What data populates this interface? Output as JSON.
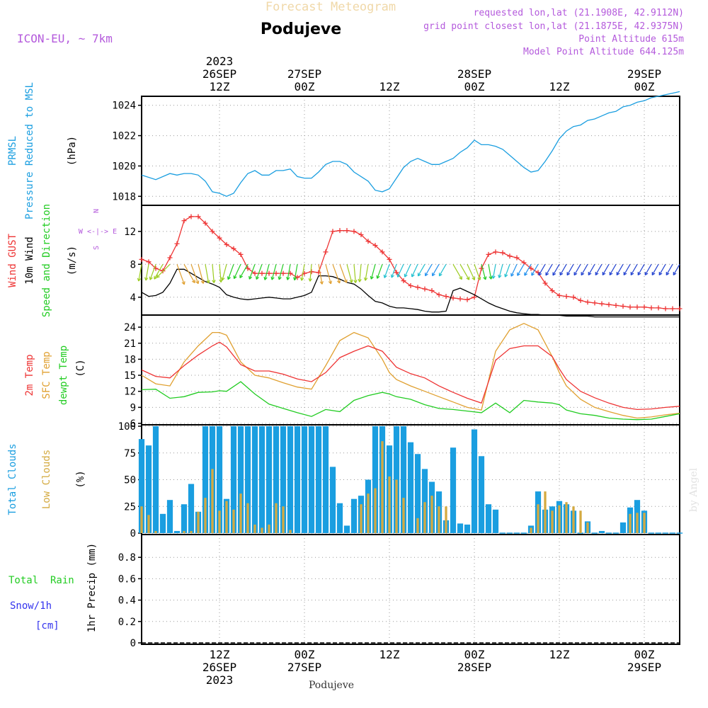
{
  "header": {
    "title_faint": "Forecast Meteogram",
    "location": "Podujeve",
    "model": "ICON-EU, ~ 7km",
    "requested": "requested lon,lat (21.1908E, 42.9112N)",
    "gridpoint": "grid point closest lon,lat (21.1875E, 42.9375N)",
    "point_altitude": "Point Altitude 615m",
    "model_altitude": "Model Point Altitude 644.125m",
    "footer_location": "Podujeve",
    "watermark": "by Angel"
  },
  "colors": {
    "pressure": "#1a9ee0",
    "gust": "#ee3333",
    "wind": "#000000",
    "temp2m": "#ee3333",
    "sfctemp": "#e0a030",
    "dewpt": "#22cc22",
    "total_clouds": "#1a9ee0",
    "low_clouds": "#d4aa40",
    "rain": "#22cc22",
    "snow": "#3333ee",
    "title_purple": "#b45adc",
    "grid": "#999999"
  },
  "axis_labels": {
    "pressure": [
      "PRMSL",
      "Pressure Reduced to MSL",
      "(hPa)"
    ],
    "wind": [
      "Wind GUST",
      "10m Wind",
      "Speed and Direction",
      "(m/s)"
    ],
    "compass": [
      "N",
      "W <-|-> E",
      "S"
    ],
    "temp": [
      "2m Temp",
      "SFC Temp",
      "dewpt Temp",
      "(C)"
    ],
    "clouds": [
      "Total Clouds",
      "Low Clouds",
      "(%)"
    ],
    "precip": [
      "1hr Precip (mm)"
    ],
    "precip_legend": [
      "Total  Rain",
      "Snow/1h",
      "[cm]"
    ]
  },
  "time_axis": {
    "top": [
      {
        "hour": 12,
        "lines": [
          "2023",
          "26SEP",
          "12Z"
        ]
      },
      {
        "hour": 24,
        "lines": [
          "27SEP",
          "00Z"
        ]
      },
      {
        "hour": 36,
        "lines": [
          "12Z"
        ]
      },
      {
        "hour": 48,
        "lines": [
          "28SEP",
          "00Z"
        ]
      },
      {
        "hour": 60,
        "lines": [
          "12Z"
        ]
      },
      {
        "hour": 72,
        "lines": [
          "29SEP",
          "00Z"
        ]
      }
    ],
    "bottom": [
      {
        "hour": 12,
        "lines": [
          "12Z",
          "26SEP",
          "2023"
        ]
      },
      {
        "hour": 24,
        "lines": [
          "00Z",
          "27SEP"
        ]
      },
      {
        "hour": 36,
        "lines": [
          "12Z"
        ]
      },
      {
        "hour": 48,
        "lines": [
          "00Z",
          "28SEP"
        ]
      },
      {
        "hour": 60,
        "lines": [
          "12Z"
        ]
      },
      {
        "hour": 72,
        "lines": [
          "00Z",
          "29SEP"
        ]
      }
    ],
    "first_hour": 1,
    "last_hour": 77
  },
  "chart_data": [
    {
      "type": "line",
      "name": "pressure",
      "ylim": [
        1017.5,
        1024.5
      ],
      "yticks": [
        1018,
        1020,
        1022,
        1024
      ],
      "x": [
        1,
        3,
        5,
        6,
        7,
        8,
        9,
        10,
        11,
        12,
        13,
        14,
        15,
        16,
        17,
        18,
        19,
        20,
        21,
        22,
        23,
        24,
        25,
        26,
        27,
        28,
        29,
        30,
        31,
        32,
        33,
        34,
        35,
        36,
        37,
        38,
        39,
        40,
        41,
        42,
        43,
        44,
        45,
        46,
        47,
        48,
        49,
        50,
        51,
        52,
        53,
        54,
        55,
        56,
        57,
        58,
        59,
        60,
        61,
        62,
        63,
        64,
        65,
        66,
        67,
        68,
        69,
        70,
        71,
        72,
        73,
        74,
        75,
        76,
        77
      ],
      "values": [
        1019.4,
        1019.1,
        1019.5,
        1019.4,
        1019.5,
        1019.5,
        1019.4,
        1019.0,
        1018.3,
        1018.2,
        1018.0,
        1018.2,
        1018.9,
        1019.5,
        1019.7,
        1019.4,
        1019.4,
        1019.7,
        1019.7,
        1019.8,
        1019.3,
        1019.2,
        1019.2,
        1019.6,
        1020.1,
        1020.3,
        1020.3,
        1020.1,
        1019.6,
        1019.3,
        1019.0,
        1018.4,
        1018.3,
        1018.5,
        1019.2,
        1019.9,
        1020.3,
        1020.5,
        1020.3,
        1020.1,
        1020.1,
        1020.3,
        1020.5,
        1020.9,
        1021.2,
        1021.7,
        1021.4,
        1021.4,
        1021.3,
        1021.1,
        1020.7,
        1020.3,
        1019.9,
        1019.6,
        1019.7,
        1020.3,
        1021.0,
        1021.8,
        1022.3,
        1022.6,
        1022.7,
        1023.0,
        1023.1,
        1023.3,
        1023.5,
        1023.6,
        1023.9,
        1024.0,
        1024.2,
        1024.3,
        1024.5,
        1024.6,
        1024.7,
        1024.8,
        1024.9
      ]
    },
    {
      "type": "line",
      "name": "wind",
      "ylim": [
        2,
        15
      ],
      "yticks": [
        4,
        8,
        12
      ],
      "x": [
        1,
        2,
        3,
        4,
        5,
        6,
        7,
        8,
        9,
        10,
        11,
        12,
        13,
        14,
        15,
        16,
        17,
        18,
        19,
        20,
        21,
        22,
        23,
        24,
        25,
        26,
        27,
        28,
        29,
        30,
        31,
        32,
        33,
        34,
        35,
        36,
        37,
        38,
        39,
        40,
        41,
        42,
        43,
        44,
        45,
        46,
        47,
        48,
        49,
        50,
        51,
        52,
        53,
        54,
        55,
        56,
        57,
        58,
        59,
        60,
        61,
        62,
        63,
        64,
        65,
        66,
        67,
        68,
        69,
        70,
        71,
        72,
        73,
        74,
        75,
        76,
        77
      ],
      "gust": [
        8.6,
        8.3,
        7.5,
        7.2,
        8.8,
        10.5,
        13.3,
        13.8,
        13.8,
        13.0,
        12.0,
        11.2,
        10.4,
        9.9,
        9.2,
        7.5,
        6.9,
        6.9,
        6.9,
        6.9,
        6.9,
        6.9,
        6.4,
        6.9,
        7.1,
        7.0,
        9.5,
        12.0,
        12.1,
        12.1,
        12.0,
        11.6,
        10.8,
        10.3,
        9.5,
        8.6,
        7.0,
        6.0,
        5.4,
        5.2,
        5.0,
        4.8,
        4.3,
        4.1,
        3.9,
        3.8,
        3.7,
        4.0,
        7.5,
        9.2,
        9.5,
        9.4,
        9.0,
        8.8,
        8.2,
        7.5,
        7.0,
        5.7,
        4.8,
        4.2,
        4.1,
        4.0,
        3.6,
        3.4,
        3.3,
        3.2,
        3.1,
        3.0,
        2.9,
        2.8,
        2.8,
        2.8,
        2.7,
        2.7,
        2.6,
        2.6,
        2.6
      ],
      "speed": [
        4.6,
        4.1,
        4.2,
        4.6,
        5.7,
        7.4,
        7.4,
        6.9,
        6.4,
        5.9,
        5.6,
        5.2,
        4.3,
        4.0,
        3.8,
        3.7,
        3.8,
        3.9,
        4.0,
        3.9,
        3.8,
        3.8,
        4.0,
        4.2,
        4.6,
        6.6,
        6.6,
        6.5,
        6.2,
        5.8,
        5.6,
        5.0,
        4.2,
        3.5,
        3.3,
        2.9,
        2.7,
        2.7,
        2.6,
        2.5,
        2.3,
        2.2,
        2.2,
        2.3,
        4.8,
        5.1,
        4.7,
        4.3,
        3.8,
        3.3,
        2.9,
        2.6,
        2.3,
        2.1,
        2.0,
        1.9,
        1.9,
        1.8,
        1.8,
        1.8,
        1.7,
        1.7,
        1.7,
        1.7,
        1.6,
        1.6,
        1.6,
        1.6,
        1.6,
        1.6,
        1.6,
        1.6,
        1.6,
        1.6,
        1.6,
        1.6,
        1.6
      ],
      "direction_deg": [
        10,
        10,
        20,
        30,
        45,
        340,
        330,
        340,
        345,
        350,
        355,
        355,
        15,
        20,
        25,
        30,
        20,
        20,
        15,
        15,
        15,
        10,
        10,
        10,
        5,
        350,
        345,
        340,
        340,
        345,
        355,
        5,
        10,
        15,
        20,
        20,
        20,
        25,
        25,
        25,
        30,
        30,
        30,
        30,
        330,
        330,
        335,
        340,
        345,
        350,
        10,
        15,
        20,
        25,
        30,
        30,
        30,
        30,
        30,
        30,
        30,
        30,
        30,
        30,
        30,
        30,
        30,
        30,
        30,
        30,
        30,
        30,
        30,
        30,
        30,
        30,
        30
      ]
    },
    {
      "type": "line",
      "name": "temperature",
      "ylim": [
        6,
        26
      ],
      "yticks": [
        6,
        9,
        12,
        15,
        18,
        21,
        24
      ],
      "x": [
        1,
        3,
        5,
        7,
        9,
        11,
        12,
        13,
        15,
        17,
        19,
        21,
        23,
        25,
        27,
        29,
        31,
        33,
        35,
        36,
        37,
        39,
        41,
        43,
        45,
        47,
        49,
        51,
        53,
        55,
        57,
        59,
        60,
        61,
        63,
        65,
        67,
        69,
        71,
        73,
        75,
        77
      ],
      "temp2m": [
        16.0,
        14.8,
        14.5,
        16.8,
        18.8,
        20.5,
        21.2,
        20.3,
        17.0,
        15.8,
        15.8,
        15.2,
        14.3,
        13.8,
        15.5,
        18.3,
        19.5,
        20.5,
        19.5,
        18.0,
        16.5,
        15.3,
        14.5,
        13.0,
        11.8,
        10.7,
        9.8,
        17.8,
        20.0,
        20.5,
        20.5,
        18.5,
        16.2,
        14.2,
        12.0,
        10.8,
        9.8,
        9.0,
        8.6,
        8.7,
        9.0,
        9.2
      ],
      "sfc": [
        15.0,
        13.4,
        13.0,
        17.5,
        20.5,
        23.0,
        23.0,
        22.5,
        17.5,
        15.0,
        14.5,
        13.6,
        12.8,
        12.4,
        16.8,
        21.5,
        23.0,
        22.0,
        18.0,
        15.5,
        14.2,
        13.0,
        12.0,
        11.0,
        10.0,
        9.0,
        8.5,
        19.5,
        23.5,
        24.7,
        23.5,
        18.5,
        15.5,
        13.0,
        10.5,
        9.0,
        8.2,
        7.5,
        7.0,
        7.2,
        7.6,
        7.9
      ],
      "dewpt": [
        12.3,
        12.4,
        10.7,
        11.0,
        11.8,
        11.9,
        12.1,
        12.0,
        13.8,
        11.5,
        9.6,
        8.8,
        8.0,
        7.3,
        8.6,
        8.2,
        10.3,
        11.2,
        11.8,
        11.5,
        11.0,
        10.5,
        9.5,
        8.8,
        8.6,
        8.3,
        8.0,
        9.8,
        8.0,
        10.3,
        10.0,
        9.8,
        9.5,
        8.5,
        7.8,
        7.5,
        7.0,
        6.8,
        6.7,
        6.8,
        7.3,
        7.8
      ]
    },
    {
      "type": "bar",
      "name": "clouds",
      "ylim": [
        0,
        100
      ],
      "yticks": [
        0,
        25,
        50,
        75,
        100
      ],
      "x": [
        1,
        2,
        3,
        4,
        5,
        6,
        7,
        8,
        9,
        10,
        11,
        12,
        13,
        14,
        15,
        16,
        17,
        18,
        19,
        20,
        21,
        22,
        23,
        24,
        25,
        26,
        27,
        28,
        29,
        30,
        31,
        32,
        33,
        34,
        35,
        36,
        37,
        38,
        39,
        40,
        41,
        42,
        43,
        44,
        45,
        46,
        47,
        48,
        49,
        50,
        51,
        52,
        53,
        54,
        55,
        56,
        57,
        58,
        59,
        60,
        61,
        62,
        63,
        64,
        65,
        66,
        67,
        68,
        69,
        70,
        71,
        72,
        73,
        74,
        75,
        76,
        77
      ],
      "total": [
        88,
        82,
        100,
        18,
        31,
        2,
        27,
        46,
        20,
        100,
        100,
        100,
        32,
        100,
        100,
        100,
        100,
        100,
        100,
        100,
        100,
        100,
        100,
        100,
        100,
        100,
        100,
        62,
        28,
        7,
        32,
        35,
        50,
        100,
        100,
        82,
        100,
        100,
        85,
        74,
        60,
        48,
        39,
        12,
        80,
        9,
        8,
        97,
        72,
        27,
        22,
        0,
        0,
        0,
        0,
        7,
        39,
        22,
        25,
        30,
        27,
        21,
        0,
        11,
        0,
        2,
        0,
        0,
        10,
        24,
        31,
        21,
        0,
        0,
        0,
        0,
        0
      ],
      "low": [
        25,
        17,
        2,
        0,
        0,
        0,
        2,
        2,
        20,
        33,
        60,
        21,
        30,
        22,
        37,
        28,
        8,
        5,
        8,
        28,
        25,
        3,
        0,
        0,
        0,
        0,
        0,
        0,
        0,
        0,
        0,
        27,
        37,
        42,
        86,
        53,
        50,
        33,
        0,
        14,
        29,
        35,
        25,
        25,
        0,
        0,
        0,
        0,
        0,
        0,
        0,
        0,
        0,
        0,
        0,
        5,
        27,
        39,
        21,
        26,
        29,
        25,
        21,
        10,
        0,
        0,
        0,
        0,
        0,
        18,
        19,
        19,
        0,
        0,
        0,
        0,
        0
      ]
    },
    {
      "type": "bar",
      "name": "precip",
      "ylim": [
        0,
        1.0
      ],
      "yticks": [
        0,
        0.2,
        0.4,
        0.6,
        0.8
      ],
      "ytick_labels": [
        "0",
        "0.2",
        "0.4",
        "0.6",
        "0.8"
      ],
      "x": [],
      "rain": [],
      "snow": []
    }
  ]
}
